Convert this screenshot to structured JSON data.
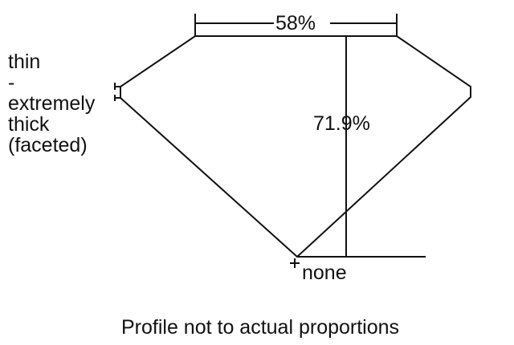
{
  "diagram": {
    "table_percent": "58%",
    "depth_percent": "71.9%",
    "girdle_label_lines": [
      "thin",
      "-",
      "extremely",
      "thick",
      "(faceted)"
    ],
    "culet_label": "none",
    "note": "Profile not to actual proportions",
    "line_color": "#111111"
  }
}
